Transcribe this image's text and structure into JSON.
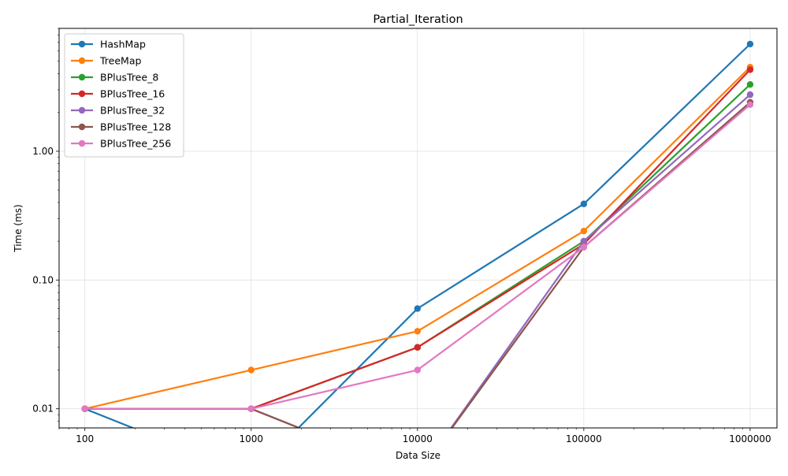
{
  "chart_data": {
    "type": "line",
    "title": "Partial_Iteration",
    "xlabel": "Data Size",
    "ylabel": "Time (ms)",
    "x_scale": "log",
    "y_scale": "log",
    "x": [
      100,
      1000,
      10000,
      100000,
      1000000
    ],
    "x_tick_labels": [
      "100",
      "1000",
      "10000",
      "100000",
      "1000000"
    ],
    "y_ticks": [
      0.01,
      0.1,
      1.0
    ],
    "y_tick_labels": [
      "0.01",
      "0.10",
      "1.00"
    ],
    "xlim": [
      70,
      1450000
    ],
    "ylim": [
      0.0071,
      9.0
    ],
    "grid": true,
    "legend_position": "top-left",
    "series": [
      {
        "name": "HashMap",
        "color": "#1f77b4",
        "values": [
          0.01,
          0,
          0.06,
          0.39,
          6.8
        ]
      },
      {
        "name": "TreeMap",
        "color": "#ff7f0e",
        "values": [
          0.01,
          0.02,
          0.04,
          0.24,
          4.5
        ]
      },
      {
        "name": "BPlusTree_8",
        "color": "#2ca02c",
        "values": [
          0.01,
          0.01,
          0.03,
          0.2,
          3.3
        ]
      },
      {
        "name": "BPlusTree_16",
        "color": "#d62728",
        "values": [
          0.01,
          0.01,
          0.03,
          0.19,
          4.3
        ]
      },
      {
        "name": "BPlusTree_32",
        "color": "#9467bd",
        "values": [
          0.01,
          0.01,
          0,
          0.2,
          2.75
        ]
      },
      {
        "name": "BPlusTree_128",
        "color": "#8c564b",
        "values": [
          0.01,
          0.01,
          0,
          0.18,
          2.4
        ]
      },
      {
        "name": "BPlusTree_256",
        "color": "#e377c2",
        "values": [
          0.01,
          0.01,
          0.02,
          0.18,
          2.3
        ]
      }
    ]
  }
}
